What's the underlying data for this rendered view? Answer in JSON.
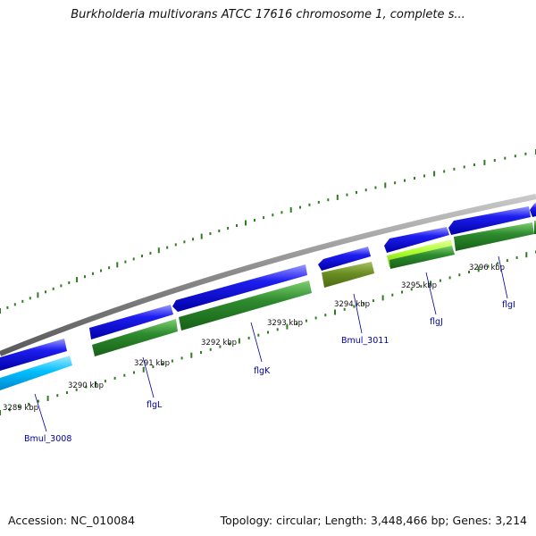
{
  "title": "Burkholderia multivorans ATCC 17616 chromosome 1, complete s...",
  "footer": {
    "accession": "Accession: NC_010084",
    "summary": "Topology: circular; Length: 3,448,466 bp; Genes: 3,214"
  },
  "colors": {
    "backbone": "#8a8a8a",
    "forward_cds": "#1010e0",
    "reverse_cds": "#2e8b2e",
    "olive_cds": "#6b8e23",
    "lime_cds": "#adff2f",
    "cyan_cds": "#00bfff",
    "ticks": "#2e7d1e",
    "gene_label": "#0000a0"
  },
  "scale_labels": [
    "3289 kbp",
    "3290 kbp",
    "3291 kbp",
    "3292 kbp",
    "3293 kbp",
    "3294 kbp",
    "3295 kbp",
    "3296 kbp"
  ],
  "gene_labels": [
    {
      "name": "Bmul_3008"
    },
    {
      "name": "flgL"
    },
    {
      "name": "flgK"
    },
    {
      "name": "Bmul_3011"
    },
    {
      "name": "flgJ"
    },
    {
      "name": "flgI"
    }
  ]
}
